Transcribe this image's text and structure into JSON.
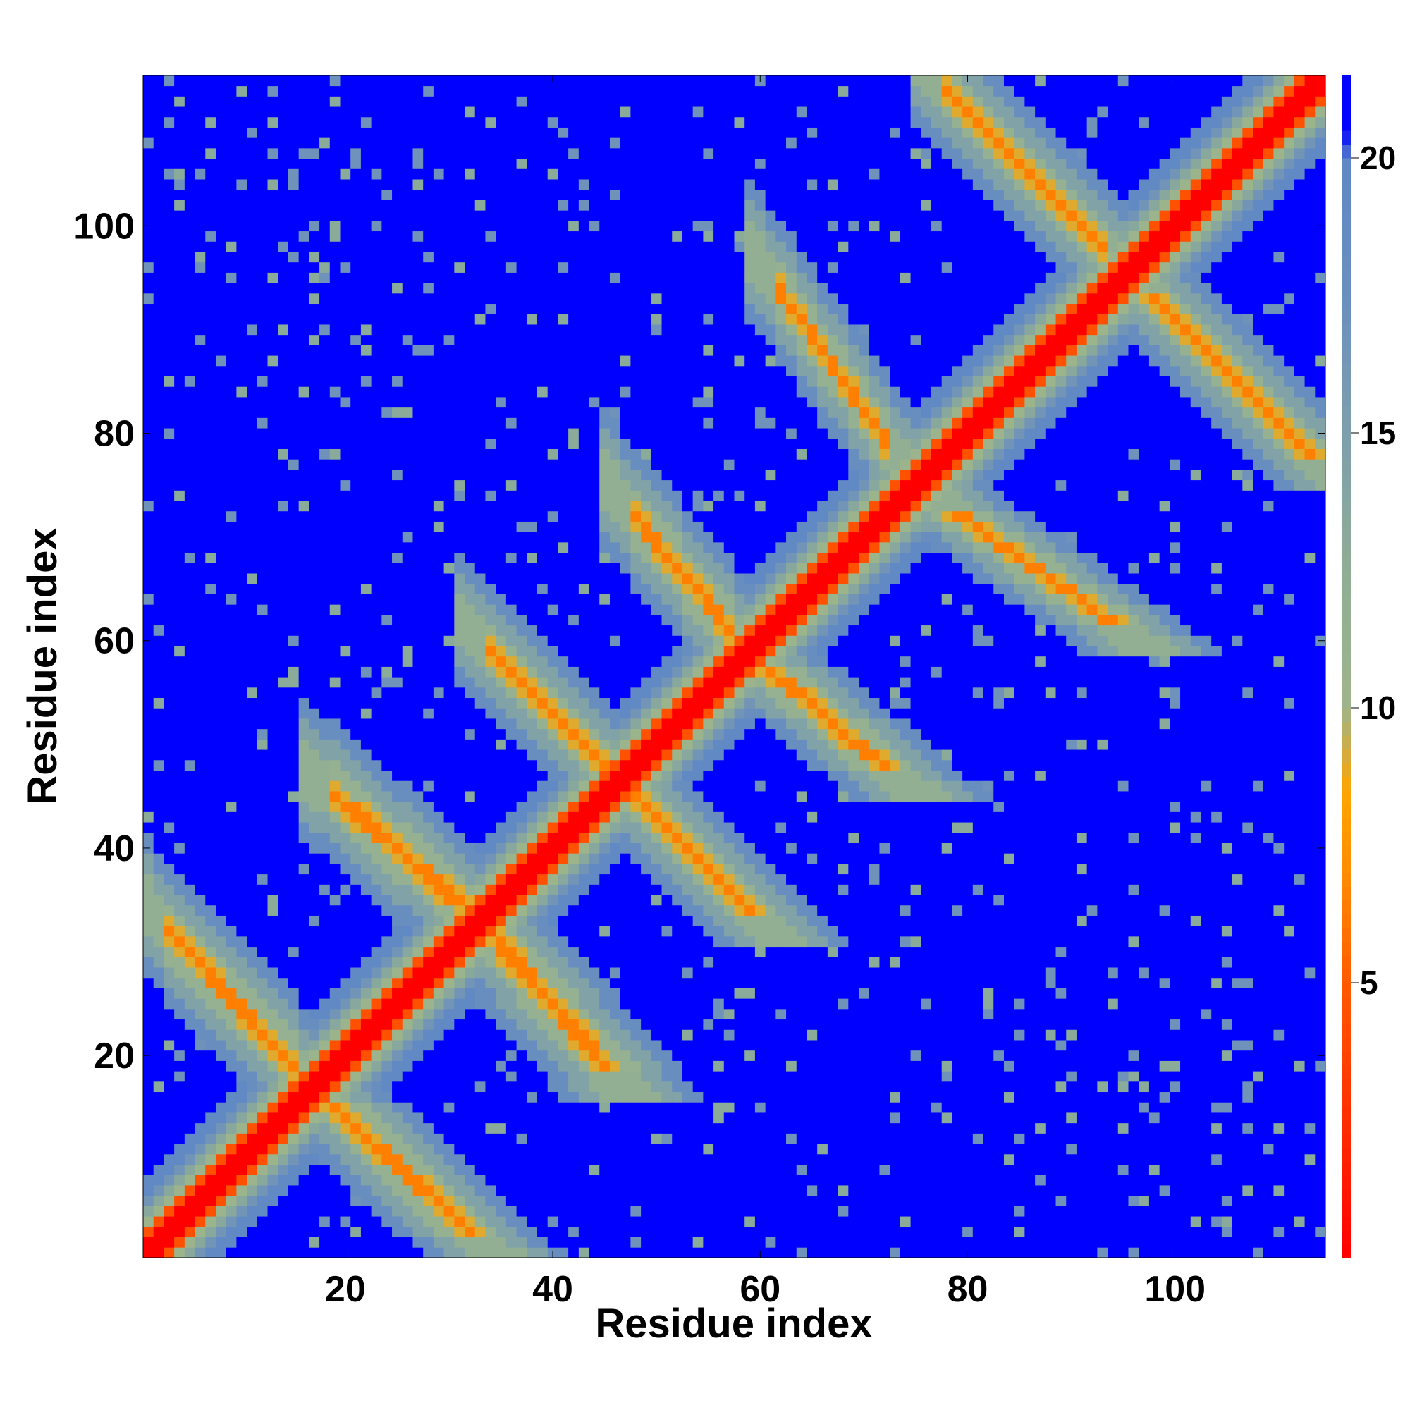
{
  "chart_data": {
    "type": "heatmap",
    "title": "",
    "xlabel": "Residue index",
    "ylabel": "Residue index",
    "n_residues": 114,
    "xlim": [
      1,
      114
    ],
    "ylim": [
      1,
      114
    ],
    "x_ticks": [
      20,
      40,
      60,
      80,
      100
    ],
    "y_ticks": [
      20,
      40,
      60,
      80,
      100
    ],
    "colorbar": {
      "range": [
        0,
        21.5
      ],
      "ticks": [
        5,
        10,
        15,
        20
      ],
      "stops": [
        {
          "value": 0,
          "color": "#ff0000"
        },
        {
          "value": 5,
          "color": "#ff5a00"
        },
        {
          "value": 7,
          "color": "#ff8c00"
        },
        {
          "value": 8.5,
          "color": "#ffa500"
        },
        {
          "value": 10,
          "color": "#9fb58a"
        },
        {
          "value": 12.5,
          "color": "#8fae95"
        },
        {
          "value": 15,
          "color": "#7d9fac"
        },
        {
          "value": 17.5,
          "color": "#6b8fbf"
        },
        {
          "value": 20,
          "color": "#5e88c4"
        },
        {
          "value": 20.5,
          "color": "#0000ff"
        },
        {
          "value": 21.5,
          "color": "#0000ff"
        }
      ]
    },
    "strands": [
      {
        "start": 1,
        "end": 16
      },
      {
        "start": 18,
        "end": 33
      },
      {
        "start": 35,
        "end": 46
      },
      {
        "start": 48,
        "end": 60
      },
      {
        "start": 62,
        "end": 73
      },
      {
        "start": 76,
        "end": 95
      },
      {
        "start": 97,
        "end": 114
      }
    ],
    "contacts": [
      {
        "i_start": 2,
        "i_end": 16,
        "j_start": 33,
        "j_end": 18
      },
      {
        "i_start": 18,
        "i_end": 33,
        "j_start": 46,
        "j_end": 33
      },
      {
        "i_start": 33,
        "i_end": 46,
        "j_start": 60,
        "j_end": 47
      },
      {
        "i_start": 47,
        "i_end": 58,
        "j_start": 73,
        "j_end": 60
      },
      {
        "i_start": 61,
        "i_end": 73,
        "j_start": 95,
        "j_end": 78
      },
      {
        "i_start": 77,
        "i_end": 94,
        "j_start": 114,
        "j_end": 97
      }
    ]
  }
}
